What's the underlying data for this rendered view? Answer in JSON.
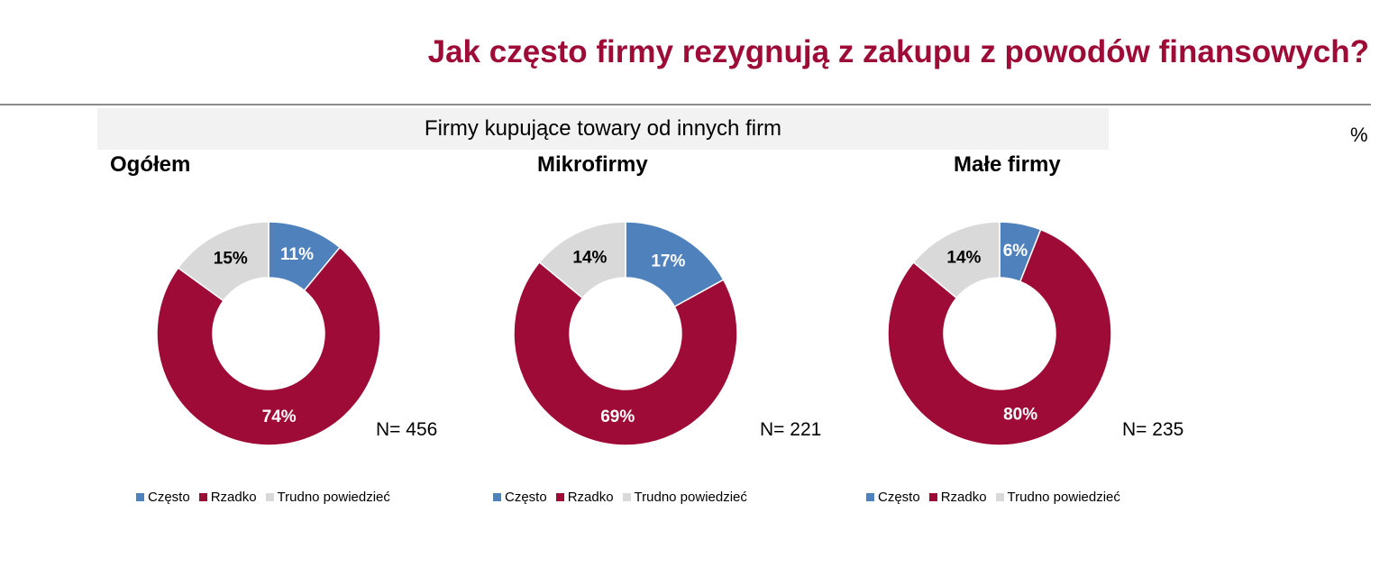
{
  "title": "Jak często firmy rezygnują z zakupu z powodów finansowych?",
  "banner": "Firmy kupujące towary od innych firm",
  "unit_label": "%",
  "colors": {
    "czesto": "#4f81bd",
    "rzadko": "#9e0b37",
    "trudno": "#d9d9d9",
    "title": "#9e0b37"
  },
  "legend": [
    "Często",
    "Rzadko",
    "Trudno powiedzieć"
  ],
  "chart_data": [
    {
      "type": "pie",
      "title": "Ogółem",
      "n_label": "N= 456",
      "categories": [
        "Często",
        "Rzadko",
        "Trudno powiedzieć"
      ],
      "values": [
        11,
        74,
        15
      ],
      "labels": [
        "11%",
        "74%",
        "15%"
      ]
    },
    {
      "type": "pie",
      "title": "Mikrofirmy",
      "n_label": "N= 221",
      "categories": [
        "Często",
        "Rzadko",
        "Trudno powiedzieć"
      ],
      "values": [
        17,
        69,
        14
      ],
      "labels": [
        "17%",
        "69%",
        "14%"
      ]
    },
    {
      "type": "pie",
      "title": "Małe firmy",
      "n_label": "N= 235",
      "categories": [
        "Często",
        "Rzadko",
        "Trudno powiedzieć"
      ],
      "values": [
        6,
        80,
        14
      ],
      "labels": [
        "6%",
        "80%",
        "14%"
      ]
    }
  ]
}
